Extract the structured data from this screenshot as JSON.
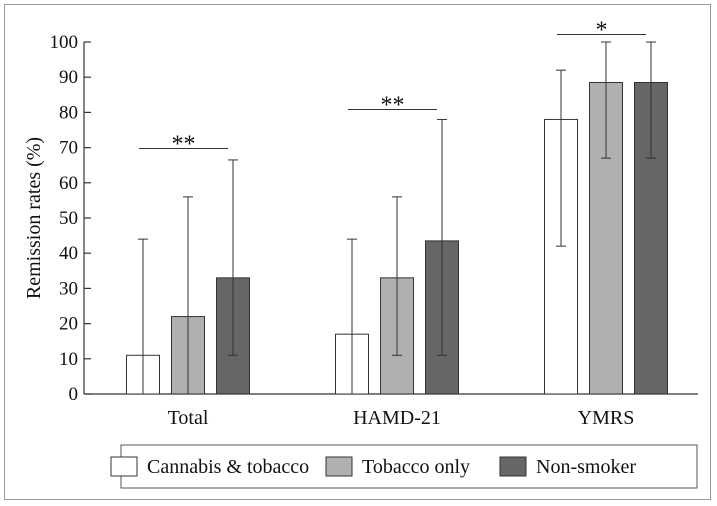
{
  "chart_data": {
    "type": "bar",
    "title": "",
    "xlabel": "",
    "ylabel": "Remission rates (%)",
    "ylim": [
      0,
      100
    ],
    "yticks": [
      0,
      10,
      20,
      30,
      40,
      50,
      60,
      70,
      80,
      90,
      100
    ],
    "categories": [
      "Total",
      "HAMD-21",
      "YMRS"
    ],
    "series": [
      {
        "name": "Cannabis & tobacco",
        "color": "#ffffff",
        "values": [
          11,
          17,
          78
        ],
        "err_low": [
          0,
          0,
          42
        ],
        "err_high": [
          44,
          44,
          92
        ]
      },
      {
        "name": "Tobacco only",
        "color": "#b0b0b0",
        "values": [
          22,
          33,
          88.5
        ],
        "err_low": [
          0,
          11,
          67
        ],
        "err_high": [
          56,
          56,
          100
        ]
      },
      {
        "name": "Non-smoker",
        "color": "#666666",
        "values": [
          33,
          43.5,
          88.5
        ],
        "err_low": [
          11,
          11,
          67
        ],
        "err_high": [
          66.5,
          78,
          100
        ]
      }
    ],
    "significance": [
      "**",
      "**",
      "*"
    ],
    "grid": false,
    "legend": "bottom"
  }
}
